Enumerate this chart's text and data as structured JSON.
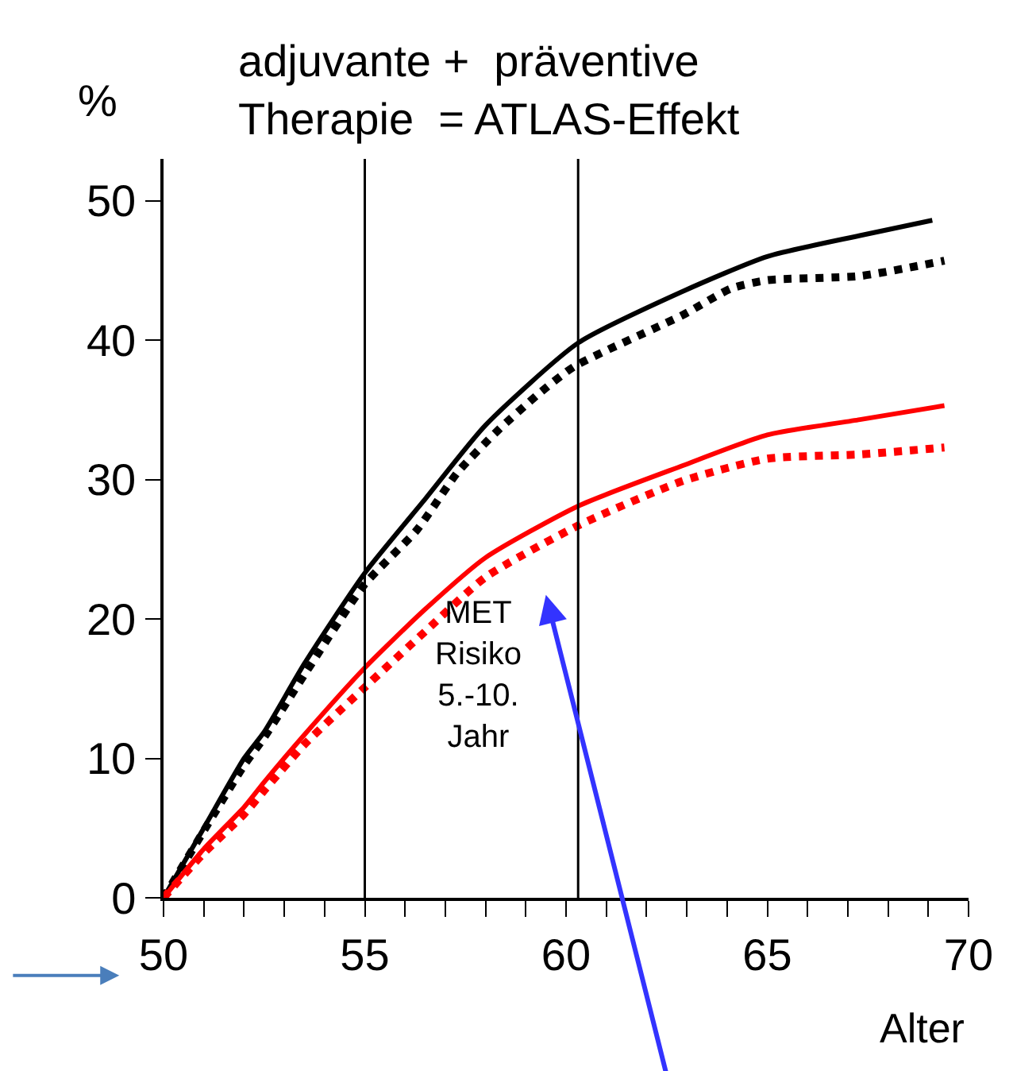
{
  "chart_data": {
    "type": "line",
    "title": "adjuvante +  präventive\nTherapie  = ATLAS-Effekt",
    "ylabel": "%",
    "xlabel": "Alter",
    "annotations": [
      "MET\nRisiko\n5.-10.\nJahr"
    ],
    "series": [
      {
        "color": "#000000",
        "line_style": "solid",
        "x": [
          50,
          51,
          52,
          52.5,
          53.5,
          55,
          56.5,
          58,
          60.3,
          62.9,
          65,
          67.3,
          69.1
        ],
        "values": [
          0,
          5,
          10,
          11.9,
          16.8,
          23.3,
          28.6,
          33.9,
          39.8,
          43.5,
          46,
          47.5,
          48.6
        ]
      },
      {
        "color": "#000000",
        "line_style": "dotted",
        "x": [
          50,
          51,
          52,
          52.5,
          53.5,
          55,
          56.3,
          57.3,
          58.3,
          59.3,
          60.2,
          62.9,
          64.1,
          65,
          67.3,
          69.4
        ],
        "values": [
          0,
          4.8,
          9.5,
          11.5,
          16,
          22.5,
          26.4,
          30.5,
          33.5,
          36.1,
          38.1,
          41.8,
          43.7,
          44.3,
          44.6,
          45.7
        ]
      },
      {
        "color": "#ff0000",
        "line_style": "solid",
        "x": [
          50,
          51,
          52,
          52.5,
          53.5,
          55,
          56.5,
          58,
          60.3,
          62.9,
          65,
          67.3,
          69.4
        ],
        "values": [
          0,
          3.5,
          6.5,
          8.3,
          11.7,
          16.5,
          20.7,
          24.4,
          28.1,
          31,
          33.2,
          34.3,
          35.3
        ]
      },
      {
        "color": "#ff0000",
        "line_style": "dotted",
        "x": [
          50,
          51,
          52,
          52.5,
          53.5,
          55,
          56.5,
          58,
          60.3,
          62.9,
          65,
          67.3,
          69.4
        ],
        "values": [
          0,
          3.2,
          6,
          7.7,
          11,
          15.1,
          19.1,
          23,
          26.7,
          29.9,
          31.5,
          31.8,
          32.3
        ]
      }
    ],
    "xlim": [
      50,
      70
    ],
    "ylim": [
      0,
      53
    ],
    "xticks": [
      50,
      {
        "value": 51,
        "label": null
      },
      {
        "value": 52,
        "label": null
      },
      {
        "value": 53,
        "label": null
      },
      {
        "value": 54,
        "label": null
      },
      55,
      {
        "value": 56,
        "label": null
      },
      {
        "value": 57,
        "label": null
      },
      {
        "value": 58,
        "label": null
      },
      {
        "value": 59,
        "label": null
      },
      60,
      {
        "value": 61,
        "label": null
      },
      {
        "value": 62,
        "label": null
      },
      {
        "value": 63,
        "label": null
      },
      {
        "value": 64,
        "label": null
      },
      65,
      {
        "value": 66,
        "label": null
      },
      {
        "value": 67,
        "label": null
      },
      {
        "value": 68,
        "label": null
      },
      {
        "value": 69,
        "label": null
      },
      70
    ],
    "yticks": [
      0,
      10,
      20,
      30,
      40,
      50
    ],
    "ref_lines": [
      {
        "axis": "x",
        "value": 55,
        "color": "#000000"
      },
      {
        "axis": "x",
        "value": 60.3,
        "color": "#000000"
      }
    ]
  }
}
